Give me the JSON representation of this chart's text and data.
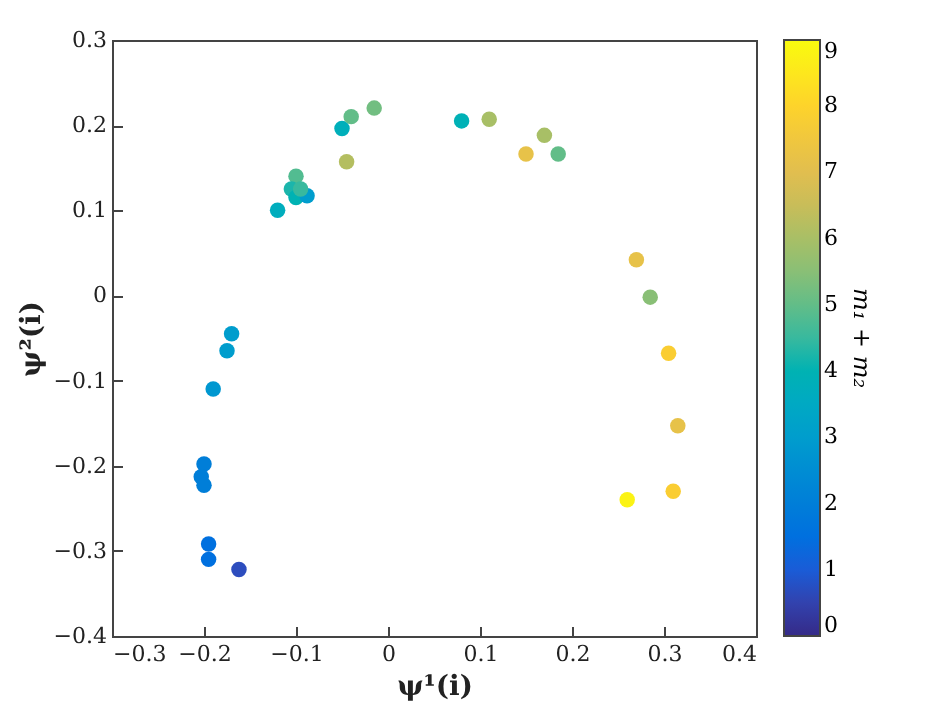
{
  "chart_data": {
    "type": "scatter",
    "xlabel": "ψ¹(i)",
    "ylabel": "ψ²(i)",
    "clabel": "m₁ + m₂",
    "xlim": [
      -0.3,
      0.4
    ],
    "xticks": [
      -0.3,
      -0.2,
      -0.1,
      0,
      0.1,
      0.2,
      0.3,
      0.4
    ],
    "ylim": [
      -0.4,
      0.3
    ],
    "yticks": [
      -0.4,
      -0.3,
      -0.2,
      -0.1,
      0,
      0.1,
      0.2,
      0.3
    ],
    "clim": [
      0,
      9
    ],
    "cticks": [
      0,
      1,
      2,
      3,
      4,
      5,
      6,
      7,
      8,
      9
    ],
    "grid": false,
    "marker": "circle",
    "x": [
      -0.12,
      -0.1,
      -0.105,
      -0.1,
      -0.088,
      -0.095,
      -0.05,
      -0.04,
      -0.015,
      -0.045,
      0.08,
      0.11,
      0.17,
      0.15,
      0.185,
      0.27,
      0.285,
      0.305,
      0.315,
      0.31,
      0.26,
      -0.17,
      -0.175,
      -0.19,
      -0.2,
      -0.203,
      -0.2,
      -0.195,
      -0.195,
      -0.162
    ],
    "values": [
      0.1,
      0.14,
      0.125,
      0.115,
      0.117,
      0.125,
      0.196,
      0.21,
      0.22,
      0.157,
      0.205,
      0.207,
      0.188,
      0.166,
      0.166,
      0.042,
      -0.002,
      -0.068,
      -0.153,
      -0.23,
      -0.24,
      -0.045,
      -0.065,
      -0.11,
      -0.198,
      -0.213,
      -0.223,
      -0.292,
      -0.31,
      -0.322
    ],
    "cvalues": [
      3.7,
      4.8,
      4.2,
      4,
      3,
      4.5,
      3.8,
      5,
      5.2,
      6.2,
      3.9,
      6,
      6,
      7.2,
      5,
      7.2,
      5.5,
      7.8,
      7.2,
      7.8,
      8.8,
      3,
      3,
      2.8,
      2,
      2,
      2,
      1.5,
      1.5,
      0.7
    ]
  }
}
